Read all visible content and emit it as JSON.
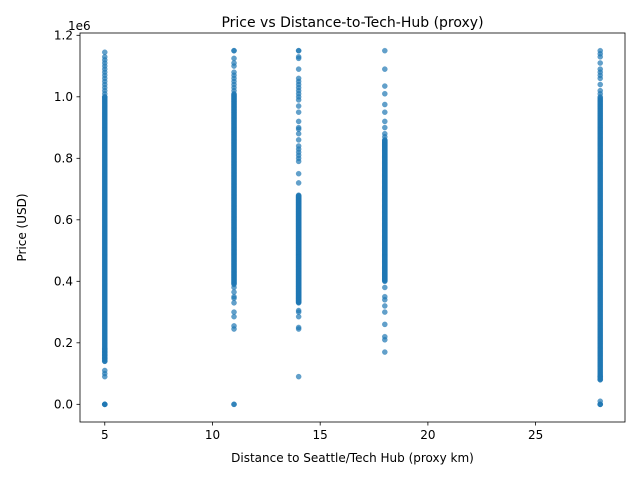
{
  "chart_data": {
    "type": "scatter",
    "title": "Price vs Distance-to-Tech-Hub (proxy)",
    "xlabel": "Distance to Seattle/Tech Hub (proxy km)",
    "ylabel": "Price (USD)",
    "y_offset_label": "1e6",
    "xlim": [
      3.85,
      29.15
    ],
    "ylim": [
      -57500,
      1207500
    ],
    "x_ticks": [
      5,
      10,
      15,
      20,
      25
    ],
    "x_tick_labels": [
      "5",
      "10",
      "15",
      "20",
      "25"
    ],
    "y_ticks": [
      0,
      200000,
      400000,
      600000,
      800000,
      1000000,
      1200000
    ],
    "y_tick_labels": [
      "0.0",
      "0.2",
      "0.4",
      "0.6",
      "0.8",
      "1.0",
      "1.2"
    ],
    "grid": false,
    "marker_color": "#1f77b4",
    "marker_alpha": 0.7,
    "groups": [
      {
        "x": 5,
        "dense_range": [
          140000,
          1000000
        ],
        "y": [
          0,
          0,
          0,
          0,
          90000,
          100000,
          110000,
          140000,
          150000,
          160000,
          170000,
          180000,
          1000000,
          1010000,
          1020000,
          1030000,
          1040000,
          1050000,
          1060000,
          1070000,
          1080000,
          1090000,
          1100000,
          1110000,
          1120000,
          1130000,
          1145000
        ]
      },
      {
        "x": 11,
        "dense_range": [
          390000,
          1010000
        ],
        "y": [
          0,
          0,
          245000,
          255000,
          285000,
          300000,
          330000,
          345000,
          350000,
          365000,
          380000,
          1020000,
          1030000,
          1040000,
          1050000,
          1060000,
          1070000,
          1080000,
          1100000,
          1110000,
          1125000,
          1150000,
          1150000
        ]
      },
      {
        "x": 14,
        "dense_range": [
          330000,
          680000
        ],
        "y": [
          90000,
          245000,
          250000,
          285000,
          300000,
          305000,
          720000,
          750000,
          790000,
          800000,
          810000,
          820000,
          830000,
          840000,
          860000,
          880000,
          895000,
          900000,
          920000,
          950000,
          970000,
          990000,
          1000000,
          1010000,
          1020000,
          1030000,
          1040000,
          1050000,
          1060000,
          1090000,
          1125000,
          1130000,
          1150000,
          1150000
        ]
      },
      {
        "x": 18,
        "dense_range": [
          400000,
          860000
        ],
        "y": [
          170000,
          210000,
          220000,
          260000,
          300000,
          320000,
          340000,
          350000,
          380000,
          870000,
          880000,
          900000,
          920000,
          950000,
          975000,
          1010000,
          1035000,
          1090000,
          1150000
        ]
      },
      {
        "x": 28,
        "dense_range": [
          80000,
          1000000
        ],
        "y": [
          0,
          0,
          0,
          10000,
          80000,
          90000,
          1010000,
          1020000,
          1040000,
          1060000,
          1070000,
          1080000,
          1090000,
          1110000,
          1130000,
          1140000,
          1150000
        ]
      }
    ]
  }
}
